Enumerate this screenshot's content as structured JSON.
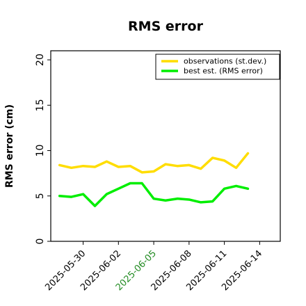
{
  "chart_data": {
    "type": "line",
    "title": "RMS error",
    "xlabel": "",
    "ylabel": "RMS error (cm)",
    "ylim": [
      0,
      21
    ],
    "xlim": [
      "2025-05-27T06:00",
      "2025-06-15T18:00"
    ],
    "yticks": [
      0,
      5,
      10,
      15,
      20
    ],
    "xticks": [
      {
        "date": "2025-05-30",
        "label": "2025-05-30",
        "color": "#000000"
      },
      {
        "date": "2025-06-02",
        "label": "2025-06-02",
        "color": "#000000"
      },
      {
        "date": "2025-06-05",
        "label": "2025-06-05",
        "color": "#228b22"
      },
      {
        "date": "2025-06-08",
        "label": "2025-06-08",
        "color": "#000000"
      },
      {
        "date": "2025-06-11",
        "label": "2025-06-11",
        "color": "#000000"
      },
      {
        "date": "2025-06-14",
        "label": "2025-06-14",
        "color": "#000000"
      }
    ],
    "x": [
      "2025-05-28",
      "2025-05-29",
      "2025-05-30",
      "2025-05-31",
      "2025-06-01",
      "2025-06-02",
      "2025-06-03",
      "2025-06-04",
      "2025-06-05",
      "2025-06-06",
      "2025-06-07",
      "2025-06-08",
      "2025-06-09",
      "2025-06-10",
      "2025-06-11",
      "2025-06-12",
      "2025-06-13",
      "2025-06-14"
    ],
    "series": [
      {
        "name": "observations (st.dev.)",
        "color": "#ffdd00",
        "values": [
          8.4,
          8.1,
          8.3,
          8.2,
          8.8,
          8.2,
          8.3,
          7.6,
          7.7,
          8.5,
          8.3,
          8.4,
          8.0,
          9.2,
          8.9,
          8.1,
          9.7,
          null
        ]
      },
      {
        "name": "best est. (RMS error)",
        "color": "#00ee00",
        "values": [
          5.0,
          4.9,
          5.2,
          3.9,
          5.2,
          5.8,
          6.4,
          6.4,
          4.7,
          4.5,
          4.7,
          4.6,
          4.3,
          4.4,
          5.8,
          6.1,
          5.8,
          null
        ]
      }
    ],
    "grid": false,
    "legend_position": "top-right"
  }
}
